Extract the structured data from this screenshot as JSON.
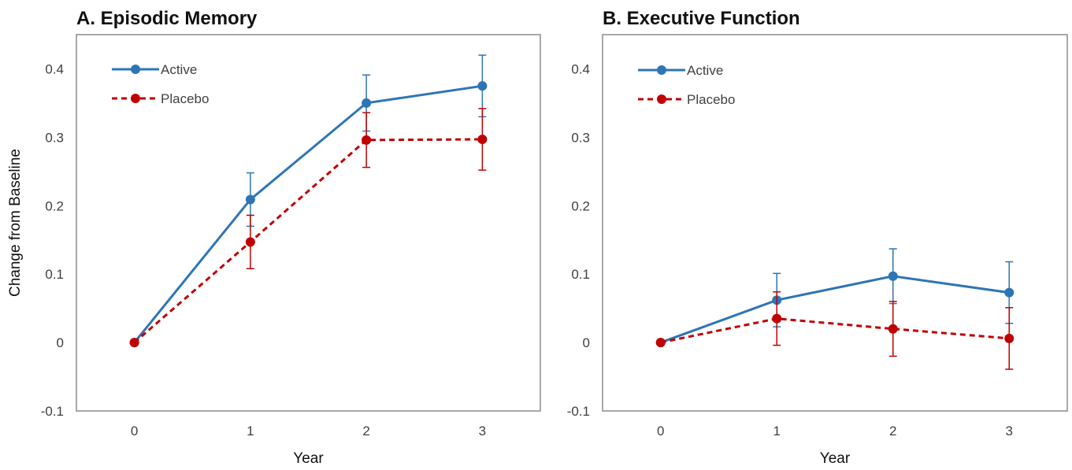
{
  "chart_data": [
    {
      "type": "line",
      "title": "A.  Episodic Memory",
      "xlabel": "Year",
      "ylabel": "Change from Baseline",
      "categories": [
        0,
        1,
        2,
        3
      ],
      "xtick_labels": [
        "0",
        "1",
        "2",
        "3"
      ],
      "ylim": [
        -0.1,
        0.45
      ],
      "yticks": [
        -0.1,
        0,
        0.1,
        0.2,
        0.3,
        0.4
      ],
      "ytick_labels": [
        "-0.1",
        "0",
        "0.1",
        "0.2",
        "0.3",
        "0.4"
      ],
      "grid": false,
      "legend_position": "top-left",
      "series": [
        {
          "name": "Active",
          "color": "#2e75b6",
          "line_style": "solid",
          "values": [
            0,
            0.209,
            0.35,
            0.375
          ],
          "error": [
            0,
            0.039,
            0.041,
            0.045
          ]
        },
        {
          "name": "Placebo",
          "color": "#c00000",
          "line_style": "dashed",
          "values": [
            0,
            0.147,
            0.296,
            0.297
          ],
          "error": [
            0,
            0.039,
            0.04,
            0.045
          ]
        }
      ]
    },
    {
      "type": "line",
      "title": "B.  Executive Function",
      "xlabel": "Year",
      "ylabel": "",
      "categories": [
        0,
        1,
        2,
        3
      ],
      "xtick_labels": [
        "0",
        "1",
        "2",
        "3"
      ],
      "ylim": [
        -0.1,
        0.45
      ],
      "yticks": [
        -0.1,
        0,
        0.1,
        0.2,
        0.3,
        0.4
      ],
      "ytick_labels": [
        "-0.1",
        "0",
        "0.1",
        "0.2",
        "0.3",
        "0.4"
      ],
      "grid": false,
      "legend_position": "top-left",
      "series": [
        {
          "name": "Active",
          "color": "#2e75b6",
          "line_style": "solid",
          "values": [
            0,
            0.062,
            0.097,
            0.073
          ],
          "error": [
            0,
            0.039,
            0.04,
            0.045
          ]
        },
        {
          "name": "Placebo",
          "color": "#c00000",
          "line_style": "dashed",
          "values": [
            0,
            0.035,
            0.02,
            0.006
          ],
          "error": [
            0,
            0.039,
            0.04,
            0.045
          ]
        }
      ]
    }
  ]
}
